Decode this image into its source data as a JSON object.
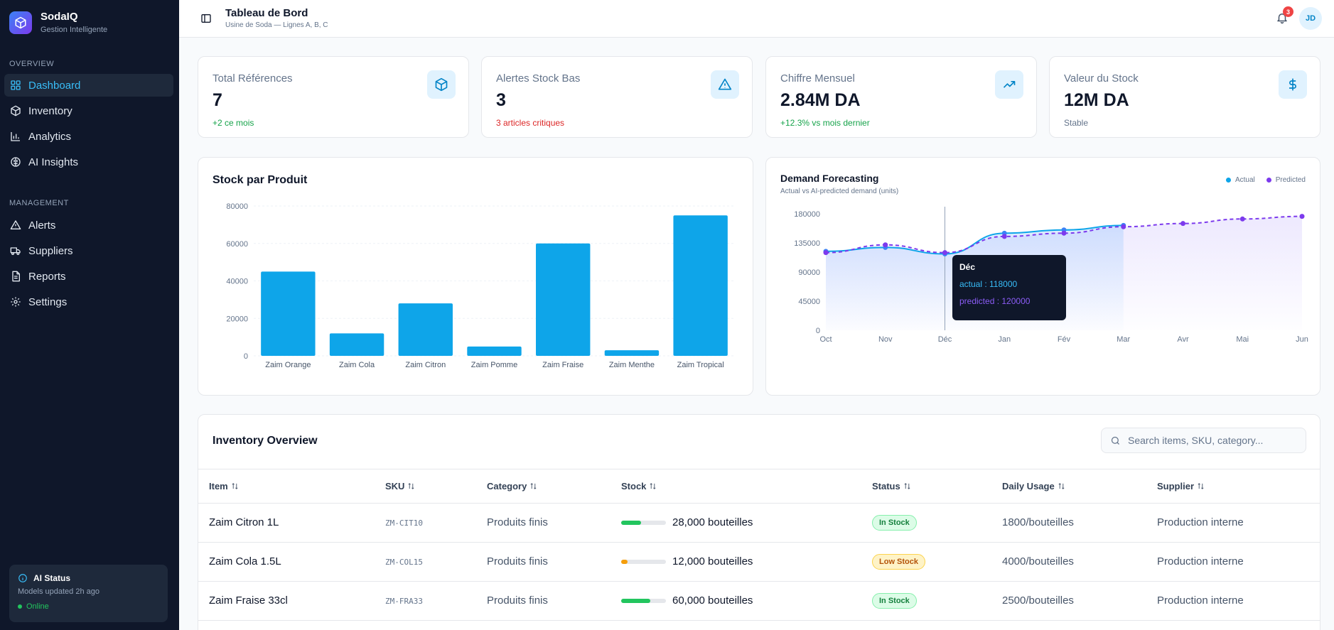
{
  "brand": {
    "name": "SodaIQ",
    "tagline": "Gestion Intelligente"
  },
  "sidebar": {
    "overview_label": "OVERVIEW",
    "management_label": "MANAGEMENT",
    "overview_items": [
      {
        "label": "Dashboard",
        "icon": "layout-grid-icon",
        "active": true
      },
      {
        "label": "Inventory",
        "icon": "package-icon"
      },
      {
        "label": "Analytics",
        "icon": "bar-chart-icon"
      },
      {
        "label": "AI Insights",
        "icon": "brain-icon"
      }
    ],
    "management_items": [
      {
        "label": "Alerts",
        "icon": "alert-triangle-icon"
      },
      {
        "label": "Suppliers",
        "icon": "truck-icon"
      },
      {
        "label": "Reports",
        "icon": "file-text-icon"
      },
      {
        "label": "Settings",
        "icon": "gear-icon"
      }
    ],
    "ai_status": {
      "title": "AI Status",
      "subtitle": "Models updated 2h ago",
      "state": "Online"
    }
  },
  "header": {
    "title": "Tableau de Bord",
    "subtitle": "Usine de Soda — Lignes A, B, C",
    "notification_count": "3",
    "avatar_initials": "JD"
  },
  "stats": [
    {
      "label": "Total Références",
      "value": "7",
      "note": "+2 ce mois",
      "note_color": "#16a34a",
      "icon": "package-icon"
    },
    {
      "label": "Alertes Stock Bas",
      "value": "3",
      "note": "3 articles critiques",
      "note_color": "#dc2626",
      "icon": "alert-triangle-icon"
    },
    {
      "label": "Chiffre Mensuel",
      "value": "2.84M DA",
      "note": "+12.3% vs mois dernier",
      "note_color": "#16a34a",
      "icon": "trending-up-icon"
    },
    {
      "label": "Valeur du Stock",
      "value": "12M DA",
      "note": "Stable",
      "note_color": "#64748b",
      "icon": "dollar-icon"
    }
  ],
  "colors": {
    "accent": "#0ea5e9",
    "predicted": "#7c3aed",
    "actual": "#0ea5e9",
    "success": "#22c55e",
    "warning": "#f59e0b"
  },
  "chart_data": [
    {
      "type": "bar",
      "title": "Stock par Produit",
      "categories": [
        "Zaim Orange",
        "Zaim Cola",
        "Zaim Citron",
        "Zaim Pomme",
        "Zaim Fraise",
        "Zaim Menthe",
        "Zaim Tropical"
      ],
      "values": [
        45000,
        12000,
        28000,
        5000,
        60000,
        3000,
        75000
      ],
      "yticks": [
        "0",
        "20000",
        "40000",
        "60000",
        "80000"
      ],
      "ylim": [
        0,
        80000
      ],
      "xlabel": "",
      "ylabel": ""
    },
    {
      "type": "line",
      "title": "Demand Forecasting",
      "subtitle": "Actual vs AI-predicted demand (units)",
      "categories": [
        "Oct",
        "Nov",
        "Déc",
        "Jan",
        "Fév",
        "Mar",
        "Avr",
        "Mai",
        "Jun"
      ],
      "series": [
        {
          "name": "Actual",
          "values": [
            122000,
            128000,
            118000,
            150000,
            155000,
            162000,
            null,
            null,
            null
          ]
        },
        {
          "name": "Predicted",
          "values": [
            120000,
            132000,
            120000,
            145000,
            150000,
            160000,
            165000,
            172000,
            176000
          ]
        }
      ],
      "yticks": [
        "0",
        "45000",
        "90000",
        "135000",
        "180000"
      ],
      "ylim": [
        0,
        180000
      ],
      "tooltip": {
        "title": "Déc",
        "actual": "actual : 118000",
        "predicted": "predicted : 120000"
      }
    }
  ],
  "inventory": {
    "title": "Inventory Overview",
    "search_placeholder": "Search items, SKU, category...",
    "columns": [
      "Item",
      "SKU",
      "Category",
      "Stock",
      "Status",
      "Daily Usage",
      "Supplier"
    ],
    "rows": [
      {
        "item": "Zaim Citron 1L",
        "sku": "ZM-CIT10",
        "category": "Produits finis",
        "stock": "28,000 bouteilles",
        "stock_level": 0.45,
        "bar_color": "#22c55e",
        "status": "In Stock",
        "status_kind": "in",
        "usage": "1800/bouteilles",
        "supplier": "Production interne"
      },
      {
        "item": "Zaim Cola 1.5L",
        "sku": "ZM-COL15",
        "category": "Produits finis",
        "stock": "12,000 bouteilles",
        "stock_level": 0.15,
        "bar_color": "#f59e0b",
        "status": "Low Stock",
        "status_kind": "low",
        "usage": "4000/bouteilles",
        "supplier": "Production interne"
      },
      {
        "item": "Zaim Fraise 33cl",
        "sku": "ZM-FRA33",
        "category": "Produits finis",
        "stock": "60,000 bouteilles",
        "stock_level": 0.65,
        "bar_color": "#22c55e",
        "status": "In Stock",
        "status_kind": "in",
        "usage": "2500/bouteilles",
        "supplier": "Production interne"
      }
    ]
  }
}
